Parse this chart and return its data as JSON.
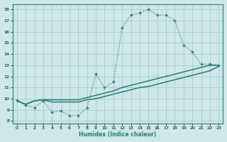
{
  "background_color": "#cce8e8",
  "grid_color": "#aacccc",
  "line_color": "#2d7d74",
  "xlabel": "Humidex (Indice chaleur)",
  "xlim": [
    -0.5,
    23.5
  ],
  "ylim": [
    7.8,
    18.5
  ],
  "xticks": [
    0,
    1,
    2,
    3,
    4,
    5,
    6,
    7,
    8,
    9,
    10,
    11,
    12,
    13,
    14,
    15,
    16,
    17,
    18,
    19,
    20,
    21,
    22,
    23
  ],
  "yticks": [
    8,
    9,
    10,
    11,
    12,
    13,
    14,
    15,
    16,
    17,
    18
  ],
  "curve_x": [
    0,
    1,
    2,
    3,
    4,
    5,
    6,
    7,
    8,
    9,
    10,
    11,
    12,
    13,
    14,
    15,
    16,
    17,
    18,
    19,
    20,
    21,
    22,
    23
  ],
  "curve_y": [
    9.9,
    9.4,
    9.2,
    9.8,
    8.8,
    8.9,
    8.5,
    8.5,
    9.2,
    12.2,
    11.0,
    11.5,
    16.4,
    17.5,
    17.7,
    18.0,
    17.5,
    17.5,
    17.0,
    14.8,
    14.2,
    13.1,
    13.1,
    13.0
  ],
  "line2_x": [
    0,
    1,
    2,
    3,
    4,
    5,
    6,
    7,
    8,
    9,
    10,
    11,
    12,
    13,
    14,
    15,
    16,
    17,
    18,
    19,
    20,
    21,
    22,
    23
  ],
  "line2_y": [
    9.8,
    9.5,
    9.8,
    9.9,
    9.9,
    9.9,
    9.9,
    9.9,
    10.1,
    10.3,
    10.5,
    10.7,
    11.0,
    11.2,
    11.4,
    11.6,
    11.8,
    12.0,
    12.2,
    12.4,
    12.6,
    12.8,
    13.0,
    13.0
  ],
  "line3_x": [
    0,
    1,
    2,
    3,
    4,
    5,
    6,
    7,
    8,
    9,
    10,
    11,
    12,
    13,
    14,
    15,
    16,
    17,
    18,
    19,
    20,
    21,
    22,
    23
  ],
  "line3_y": [
    9.8,
    9.5,
    9.8,
    9.9,
    9.7,
    9.7,
    9.7,
    9.7,
    9.9,
    10.0,
    10.2,
    10.4,
    10.6,
    10.8,
    11.0,
    11.1,
    11.3,
    11.5,
    11.7,
    11.9,
    12.1,
    12.3,
    12.5,
    12.9
  ]
}
